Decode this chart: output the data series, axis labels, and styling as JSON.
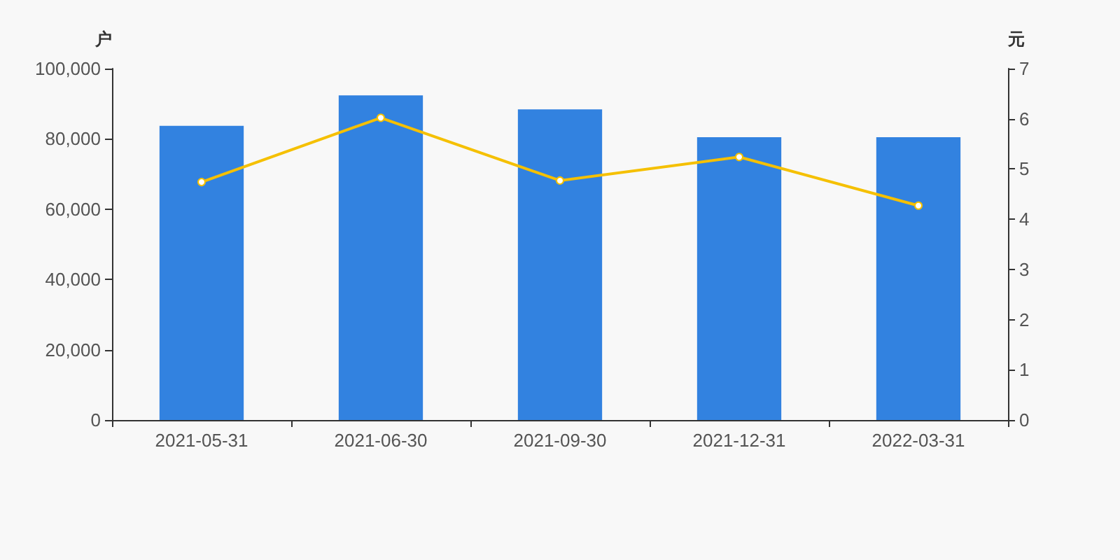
{
  "chart_data": {
    "type": "bar",
    "ylabel": "户",
    "y2label": "元",
    "categories": [
      "2021-05-31",
      "2021-06-30",
      "2021-09-30",
      "2021-12-31",
      "2022-03-31"
    ],
    "series": [
      {
        "color": "#3282e0",
        "values": [
          83700,
          92400,
          88400,
          80500,
          80500
        ]
      },
      {
        "type": "line",
        "axis": "y2",
        "color": "#f5c000",
        "marker": "circle",
        "values": [
          4.74,
          6.02,
          4.77,
          5.24,
          4.27
        ]
      }
    ],
    "ylim": [
      0,
      100000
    ],
    "yticks": [
      {
        "value": 0,
        "label": "0"
      },
      {
        "value": 20000,
        "label": "20,000"
      },
      {
        "value": 40000,
        "label": "40,000"
      },
      {
        "value": 60000,
        "label": "60,000"
      },
      {
        "value": 80000,
        "label": "80,000"
      },
      {
        "value": 100000,
        "label": "100,000"
      }
    ],
    "y2lim": [
      0,
      7
    ],
    "y2ticks": [
      0,
      1,
      2,
      3,
      4,
      5,
      6,
      7
    ],
    "grid": false
  }
}
